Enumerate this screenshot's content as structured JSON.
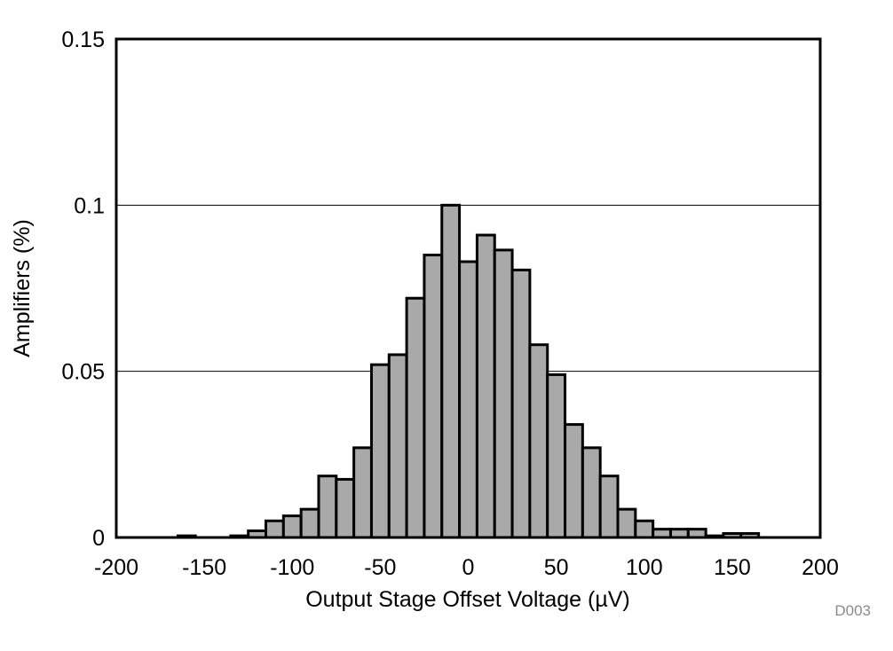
{
  "chart_data": {
    "type": "bar",
    "title": "",
    "xlabel": "Output Stage Offset Voltage (µV)",
    "ylabel": "Amplifiers (%)",
    "xlim": [
      -200,
      200
    ],
    "ylim": [
      0,
      0.15
    ],
    "x_ticks": [
      "-200",
      "-150",
      "-100",
      "-50",
      "0",
      "50",
      "100",
      "150",
      "200"
    ],
    "y_ticks": [
      "0",
      "0.05",
      "0.1",
      "0.15"
    ],
    "grid": "horizontal",
    "bin_width": 10,
    "bar_color": "#a9a9a9",
    "bins": [
      {
        "x": -160,
        "value": 0.0005
      },
      {
        "x": -130,
        "value": 0.0005
      },
      {
        "x": -120,
        "value": 0.002
      },
      {
        "x": -110,
        "value": 0.005
      },
      {
        "x": -100,
        "value": 0.0065
      },
      {
        "x": -90,
        "value": 0.0085
      },
      {
        "x": -80,
        "value": 0.0185
      },
      {
        "x": -70,
        "value": 0.0175
      },
      {
        "x": -60,
        "value": 0.027
      },
      {
        "x": -50,
        "value": 0.052
      },
      {
        "x": -40,
        "value": 0.055
      },
      {
        "x": -30,
        "value": 0.072
      },
      {
        "x": -20,
        "value": 0.085
      },
      {
        "x": -10,
        "value": 0.1
      },
      {
        "x": 0,
        "value": 0.083
      },
      {
        "x": 10,
        "value": 0.091
      },
      {
        "x": 20,
        "value": 0.0865
      },
      {
        "x": 30,
        "value": 0.0805
      },
      {
        "x": 40,
        "value": 0.058
      },
      {
        "x": 50,
        "value": 0.049
      },
      {
        "x": 60,
        "value": 0.034
      },
      {
        "x": 70,
        "value": 0.027
      },
      {
        "x": 80,
        "value": 0.0185
      },
      {
        "x": 90,
        "value": 0.0085
      },
      {
        "x": 100,
        "value": 0.005
      },
      {
        "x": 110,
        "value": 0.0025
      },
      {
        "x": 120,
        "value": 0.0025
      },
      {
        "x": 130,
        "value": 0.0025
      },
      {
        "x": 140,
        "value": 0.0005
      },
      {
        "x": 150,
        "value": 0.0012
      },
      {
        "x": 160,
        "value": 0.0012
      }
    ]
  },
  "figure_code": "D003"
}
